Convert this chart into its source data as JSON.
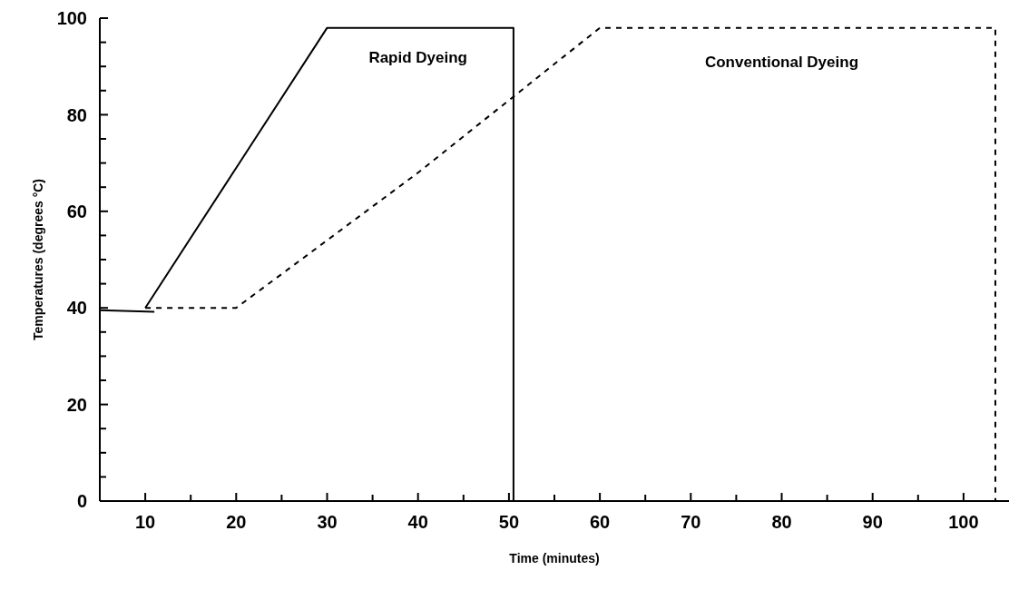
{
  "chart_data": {
    "type": "line",
    "xlabel": "Time (minutes)",
    "ylabel": "Temperatures (degrees °C)",
    "xlim": [
      5,
      105
    ],
    "ylim": [
      0,
      100
    ],
    "xticks": [
      10,
      {
        "value": 15,
        "label": null
      },
      20,
      {
        "value": 25,
        "label": null
      },
      30,
      {
        "value": 35,
        "label": null
      },
      40,
      {
        "value": 45,
        "label": null
      },
      50,
      {
        "value": 55,
        "label": null
      },
      60,
      {
        "value": 65,
        "label": null
      },
      70,
      {
        "value": 75,
        "label": null
      },
      80,
      {
        "value": 85,
        "label": null
      },
      90,
      {
        "value": 95,
        "label": null
      },
      100
    ],
    "yticks": [
      0,
      {
        "value": 5,
        "label": null
      },
      {
        "value": 10,
        "label": null
      },
      {
        "value": 15,
        "label": null
      },
      20,
      {
        "value": 25,
        "label": null
      },
      {
        "value": 30,
        "label": null
      },
      {
        "value": 35,
        "label": null
      },
      40,
      {
        "value": 45,
        "label": null
      },
      {
        "value": 50,
        "label": null
      },
      {
        "value": 55,
        "label": null
      },
      60,
      {
        "value": 65,
        "label": null
      },
      {
        "value": 70,
        "label": null
      },
      {
        "value": 75,
        "label": null
      },
      80,
      {
        "value": 85,
        "label": null
      },
      {
        "value": 90,
        "label": null
      },
      {
        "value": 95,
        "label": null
      },
      100
    ],
    "series": [
      {
        "color": "#000000",
        "line_style": "solid",
        "x": [
          10,
          20,
          30,
          40,
          50,
          50.5,
          50.5
        ],
        "values": [
          40,
          69,
          98,
          98,
          98,
          98,
          0
        ]
      },
      {
        "color": "#000000",
        "line_style": "dotted",
        "x": [
          10,
          20,
          30,
          40,
          50,
          60,
          70,
          80,
          90,
          100,
          103.5,
          103.5
        ],
        "values": [
          40,
          40,
          54,
          68,
          83,
          98,
          98,
          98,
          98,
          98,
          98,
          0
        ]
      },
      {
        "color": "#000000",
        "line_style": "solid",
        "x": [
          5,
          11
        ],
        "values": [
          39.5,
          39.2
        ]
      }
    ],
    "annotations": [
      "Rapid Dyeing",
      "Conventional Dyeing"
    ]
  }
}
